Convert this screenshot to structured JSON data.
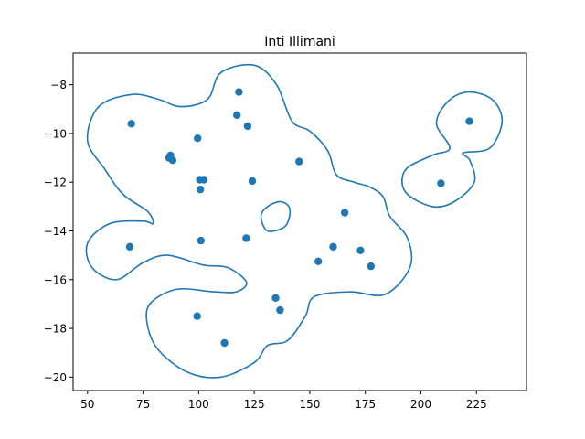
{
  "chart_data": {
    "type": "scatter",
    "title": "Inti Illimani",
    "xlabel": "",
    "ylabel": "",
    "xlim": [
      43.5,
      247.5
    ],
    "ylim": [
      -20.55,
      -6.7
    ],
    "xticks": [
      50,
      75,
      100,
      125,
      150,
      175,
      200,
      225
    ],
    "yticks": [
      -20,
      -18,
      -16,
      -14,
      -12,
      -10,
      -8
    ],
    "grid": false,
    "color": "#1f77b4",
    "points": {
      "x": [
        69.7,
        69.0,
        87.3,
        86.7,
        88.3,
        99.5,
        100.5,
        102.3,
        100.7,
        101.0,
        118.1,
        117.2,
        122.0,
        124.1,
        121.4,
        145.2,
        165.7,
        160.5,
        172.8,
        177.5,
        153.8,
        134.6,
        136.6,
        99.3,
        111.6,
        221.8,
        209.0
      ],
      "y": [
        -9.6,
        -14.65,
        -10.9,
        -11.0,
        -11.1,
        -10.2,
        -11.9,
        -11.9,
        -12.3,
        -14.4,
        -8.3,
        -9.25,
        -9.7,
        -11.95,
        -14.3,
        -11.15,
        -13.25,
        -14.65,
        -14.8,
        -15.45,
        -15.25,
        -16.75,
        -17.25,
        -17.5,
        -18.6,
        -9.5,
        -12.05
      ]
    },
    "contours": [
      [
        [
          70.0,
          -8.4
        ],
        [
          55.0,
          -8.9
        ],
        [
          50.0,
          -10.3
        ],
        [
          58.0,
          -11.5
        ],
        [
          66.0,
          -12.5
        ],
        [
          77.0,
          -13.2
        ],
        [
          79.5,
          -13.7
        ],
        [
          75.0,
          -13.6
        ],
        [
          60.0,
          -13.7
        ],
        [
          50.0,
          -14.5
        ],
        [
          52.0,
          -15.5
        ],
        [
          63.0,
          -16.0
        ],
        [
          75.0,
          -15.3
        ],
        [
          86.0,
          -15.0
        ],
        [
          102.0,
          -15.4
        ],
        [
          113.0,
          -15.5
        ],
        [
          121.5,
          -16.1
        ],
        [
          117.0,
          -16.5
        ],
        [
          107.0,
          -16.5
        ],
        [
          90.0,
          -16.4
        ],
        [
          78.0,
          -17.0
        ],
        [
          77.0,
          -17.9
        ],
        [
          82.0,
          -18.9
        ],
        [
          95.0,
          -19.8
        ],
        [
          110.0,
          -20.0
        ],
        [
          125.0,
          -19.4
        ],
        [
          131.0,
          -18.7
        ],
        [
          140.0,
          -18.5
        ],
        [
          148.0,
          -17.5
        ],
        [
          152.0,
          -16.7
        ],
        [
          168.0,
          -16.5
        ],
        [
          184.0,
          -16.6
        ],
        [
          195.0,
          -15.5
        ],
        [
          194.0,
          -14.3
        ],
        [
          186.0,
          -13.4
        ],
        [
          183.0,
          -12.6
        ],
        [
          177.0,
          -12.2
        ],
        [
          170.0,
          -12.0
        ],
        [
          162.0,
          -11.7
        ],
        [
          158.0,
          -10.7
        ],
        [
          150.0,
          -9.9
        ],
        [
          142.0,
          -9.5
        ],
        [
          135.0,
          -8.0
        ],
        [
          125.0,
          -7.2
        ],
        [
          110.0,
          -7.5
        ],
        [
          104.0,
          -8.6
        ],
        [
          92.0,
          -8.9
        ],
        [
          82.0,
          -8.6
        ],
        [
          70.0,
          -8.4
        ]
      ],
      [
        [
          137.0,
          -12.8
        ],
        [
          131.0,
          -13.0
        ],
        [
          128.0,
          -13.4
        ],
        [
          131.0,
          -14.0
        ],
        [
          139.0,
          -13.8
        ],
        [
          141.0,
          -13.1
        ],
        [
          137.0,
          -12.8
        ]
      ],
      [
        [
          221.0,
          -8.3
        ],
        [
          212.0,
          -8.7
        ],
        [
          207.0,
          -9.6
        ],
        [
          213.0,
          -10.6
        ],
        [
          205.0,
          -10.9
        ],
        [
          193.0,
          -11.5
        ],
        [
          193.0,
          -12.4
        ],
        [
          205.0,
          -13.0
        ],
        [
          215.0,
          -12.8
        ],
        [
          224.0,
          -12.0
        ],
        [
          222.0,
          -11.1
        ],
        [
          219.0,
          -10.8
        ],
        [
          231.0,
          -10.6
        ],
        [
          236.5,
          -9.5
        ],
        [
          232.0,
          -8.6
        ],
        [
          221.0,
          -8.3
        ]
      ]
    ]
  }
}
